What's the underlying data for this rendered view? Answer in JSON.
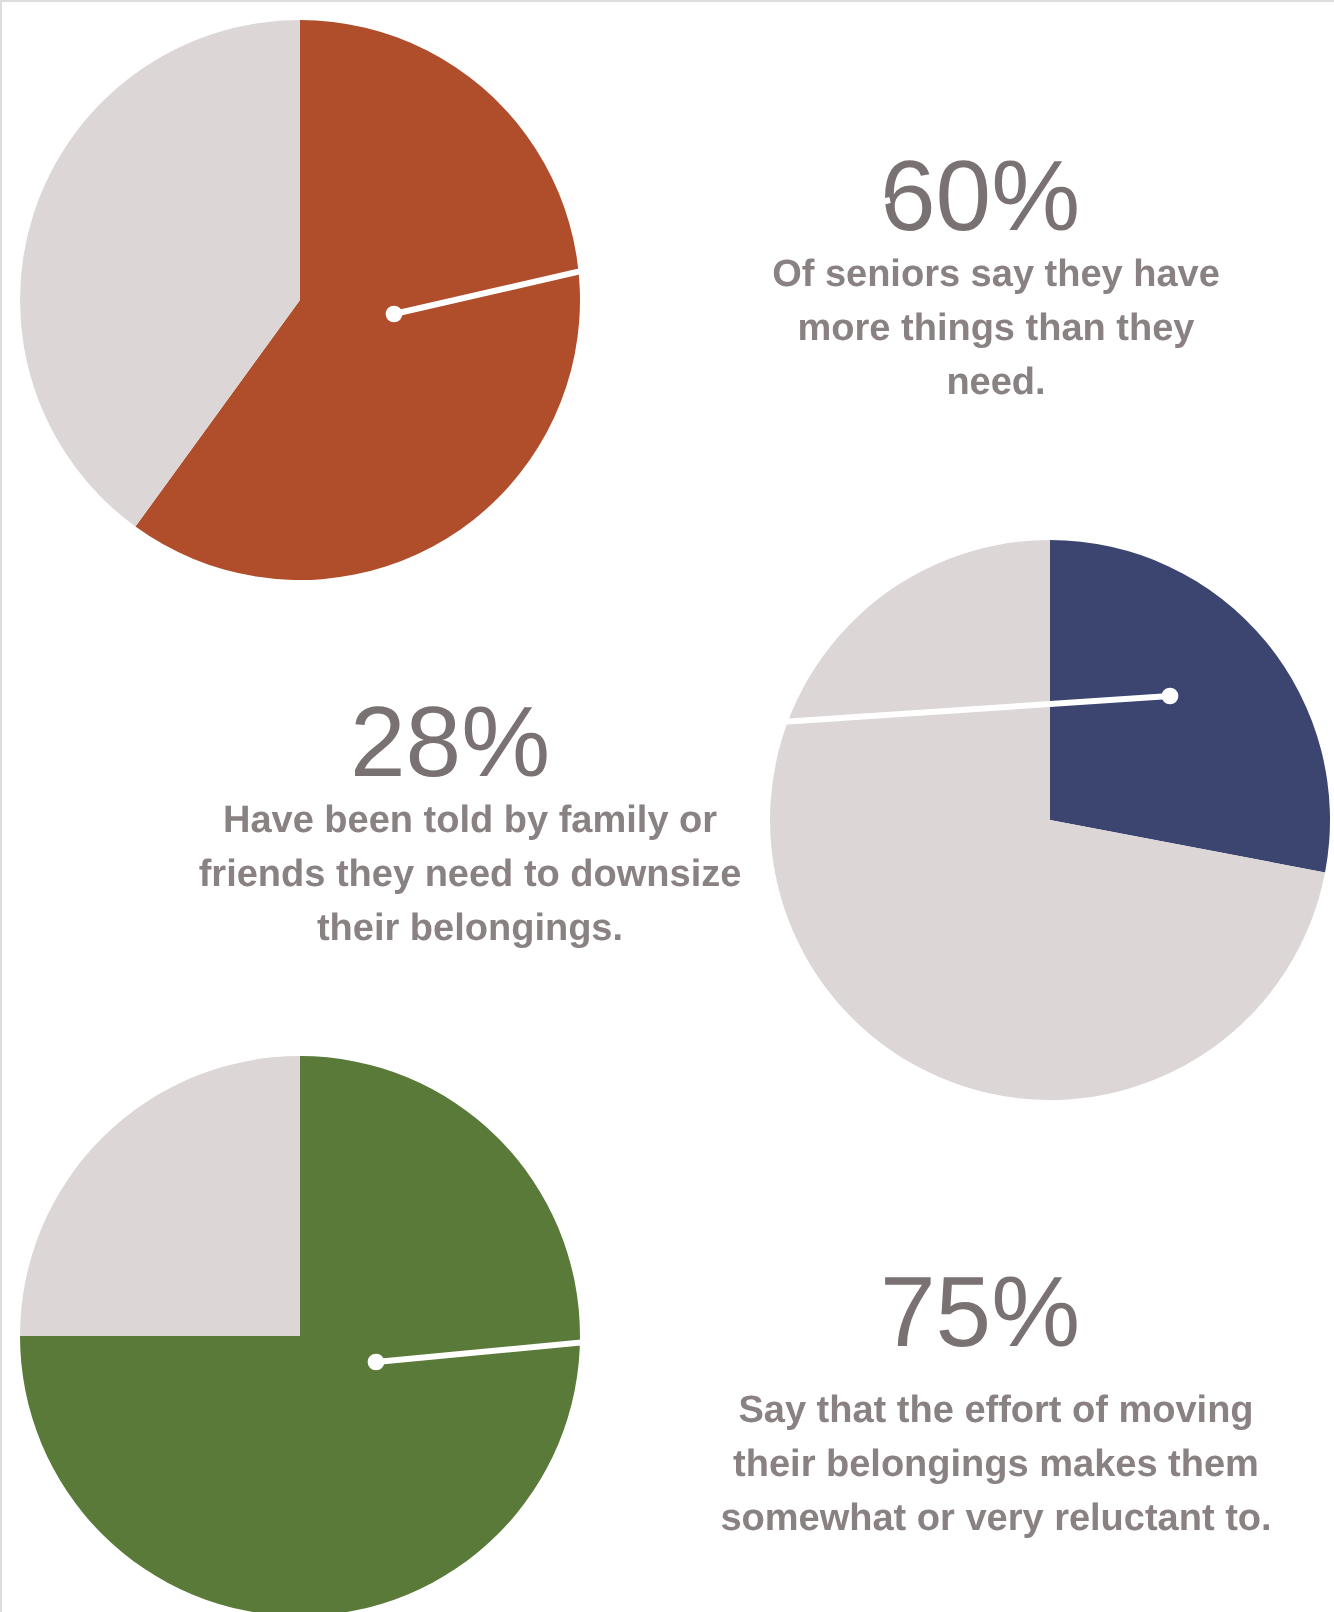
{
  "chart_data": [
    {
      "type": "pie",
      "categories": [
        null,
        null
      ],
      "values": [
        60,
        40
      ],
      "colors": [
        "#b04e2c",
        "#dcd7d6"
      ],
      "value_labels": [
        "60%",
        null
      ],
      "annotations": [
        "Of seniors say they have more things than they need."
      ]
    },
    {
      "type": "pie",
      "categories": [
        null,
        null
      ],
      "values": [
        28,
        72
      ],
      "colors": [
        "#3b4570",
        "#dcd7d6"
      ],
      "value_labels": [
        "28%",
        null
      ],
      "annotations": [
        "Have been told by family or friends they need to downsize their belongings."
      ]
    },
    {
      "type": "pie",
      "categories": [
        null,
        null
      ],
      "values": [
        75,
        25
      ],
      "colors": [
        "#5a7a3a",
        "#dcd7d6"
      ],
      "value_labels": [
        "75%",
        null
      ],
      "annotations": [
        "Say that the effort of moving their belongings makes them somewhat or very reluctant to."
      ]
    }
  ]
}
